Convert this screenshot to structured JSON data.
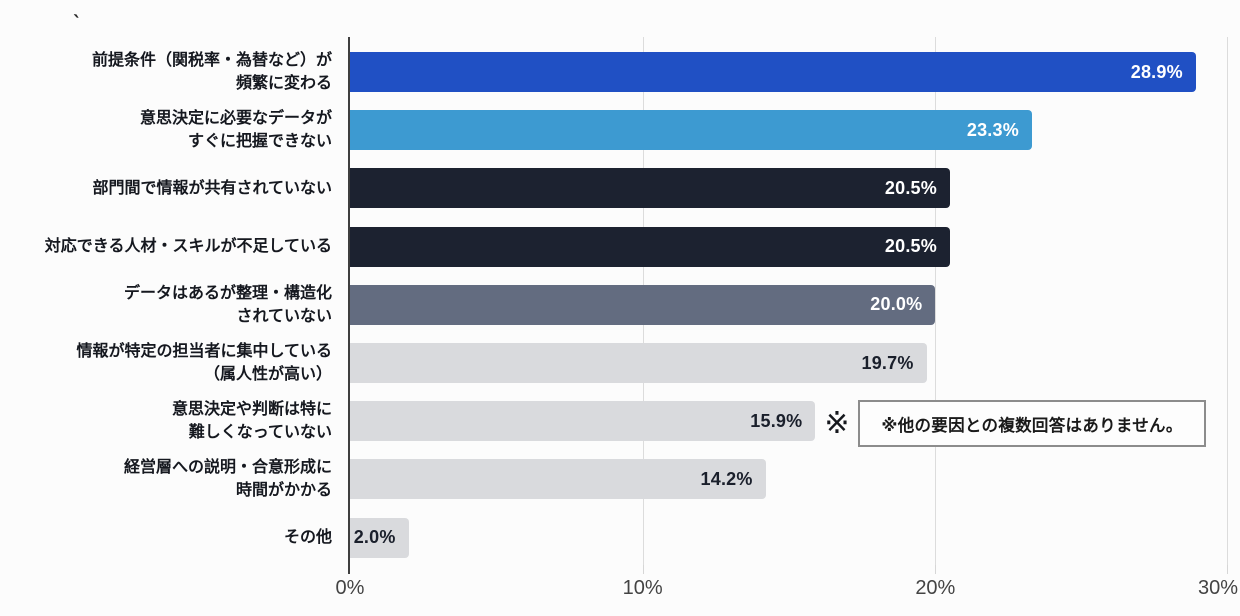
{
  "page": {
    "background": "#fcfcfc",
    "stray_mark": "`"
  },
  "chart_data": {
    "type": "bar",
    "orientation": "horizontal",
    "title": "",
    "xlabel": "",
    "ylabel": "",
    "xlim": [
      0,
      30
    ],
    "grid": "vertical gridlines at 10%, 20%, 30%",
    "legend": "none",
    "axis_color": "#3f3f3f",
    "gridline_color": "#dcdcdc",
    "x_ticks": [
      {
        "value": 0,
        "label": "0%"
      },
      {
        "value": 10,
        "label": "10%"
      },
      {
        "value": 20,
        "label": "20%"
      },
      {
        "value": 30,
        "label": "30%"
      }
    ],
    "bars": [
      {
        "label_lines": [
          "前提条件（関税率・為替など）が",
          "頻繁に変わる"
        ],
        "value": 28.9,
        "value_label": "28.9%",
        "color": "#2050c4",
        "text_color": "#ffffff"
      },
      {
        "label_lines": [
          "意思決定に必要なデータが",
          "すぐに把握できない"
        ],
        "value": 23.3,
        "value_label": "23.3%",
        "color": "#3d9ad1",
        "text_color": "#ffffff"
      },
      {
        "label_lines": [
          "部門間で情報が共有されていない"
        ],
        "value": 20.5,
        "value_label": "20.5%",
        "color": "#1c2230",
        "text_color": "#ffffff"
      },
      {
        "label_lines": [
          "対応できる人材・スキルが不足している"
        ],
        "value": 20.5,
        "value_label": "20.5%",
        "color": "#1c2230",
        "text_color": "#ffffff"
      },
      {
        "label_lines": [
          "データはあるが整理・構造化",
          "されていない"
        ],
        "value": 20.0,
        "value_label": "20.0%",
        "color": "#636c80",
        "text_color": "#ffffff"
      },
      {
        "label_lines": [
          "情報が特定の担当者に集中している",
          "（属人性が高い）"
        ],
        "value": 19.7,
        "value_label": "19.7%",
        "color": "#d9dadd",
        "text_color": "#1a1f2b"
      },
      {
        "label_lines": [
          "意思決定や判断は特に",
          "難しくなっていない"
        ],
        "value": 15.9,
        "value_label": "15.9%",
        "color": "#d9dadd",
        "text_color": "#1a1f2b",
        "marker": "※"
      },
      {
        "label_lines": [
          "経営層への説明・合意形成に",
          "時間がかかる"
        ],
        "value": 14.2,
        "value_label": "14.2%",
        "color": "#d9dadd",
        "text_color": "#1a1f2b"
      },
      {
        "label_lines": [
          "その他"
        ],
        "value": 2.0,
        "value_label": "2.0%",
        "color": "#d9dadd",
        "text_color": "#1a1f2b"
      }
    ],
    "annotation": {
      "marker": "※",
      "text": "※他の要因との複数回答はありません。"
    }
  }
}
